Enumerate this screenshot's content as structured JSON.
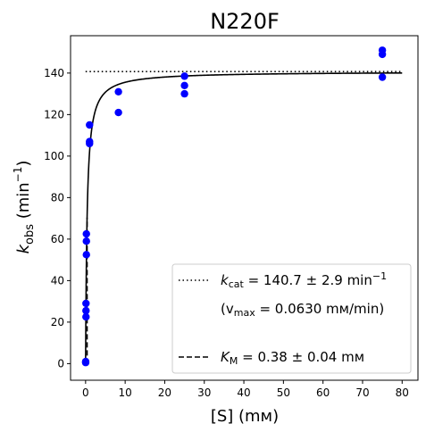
{
  "chart_data": {
    "type": "scatter",
    "title": "N220F",
    "xlabel": "[S] (mм)",
    "ylabel": "k_obs (min⁻¹)",
    "xlim": [
      -3.8,
      84
    ],
    "ylim": [
      -8,
      158
    ],
    "x_ticks": [
      0,
      10,
      20,
      30,
      40,
      50,
      60,
      70,
      80
    ],
    "y_ticks": [
      0,
      20,
      40,
      60,
      80,
      100,
      120,
      140
    ],
    "grid": false,
    "legend_position": "bottom-right",
    "colors": {
      "points": "#0000ff",
      "fit": "#000000"
    },
    "points": [
      {
        "x": 0.02,
        "y": 0.5
      },
      {
        "x": 0.02,
        "y": 1.0
      },
      {
        "x": 0.1,
        "y": 22.5
      },
      {
        "x": 0.1,
        "y": 25.5
      },
      {
        "x": 0.1,
        "y": 29.0
      },
      {
        "x": 0.2,
        "y": 52.5
      },
      {
        "x": 0.2,
        "y": 59.0
      },
      {
        "x": 0.2,
        "y": 62.5
      },
      {
        "x": 1.0,
        "y": 106.0
      },
      {
        "x": 1.0,
        "y": 107.0
      },
      {
        "x": 1.0,
        "y": 115.0
      },
      {
        "x": 8.3,
        "y": 121.0
      },
      {
        "x": 8.3,
        "y": 131.0
      },
      {
        "x": 25,
        "y": 130.0
      },
      {
        "x": 25,
        "y": 134.0
      },
      {
        "x": 25,
        "y": 138.5
      },
      {
        "x": 75,
        "y": 138.0
      },
      {
        "x": 75,
        "y": 149.0
      },
      {
        "x": 75,
        "y": 151.0
      }
    ],
    "fit": {
      "model": "michaelis-menten",
      "kcat": 140.7,
      "km": 0.38,
      "x_range": [
        0,
        80
      ]
    },
    "kcat_line": {
      "y": 140.7,
      "x_range": [
        0,
        80
      ]
    },
    "km_line": {
      "x": 0.38,
      "y_range": [
        0,
        70.35
      ]
    },
    "legend": {
      "kcat_label": "k",
      "kcat_sub": "cat",
      "kcat_value": " = 140.7 ± 2.9 min",
      "kcat_sup": "−1",
      "vmax_open": "(v",
      "vmax_sub": "max",
      "vmax_value": " = 0.0630 mм/min)",
      "km_label": "K",
      "km_sub": "M",
      "km_value": " = 0.38 ± 0.04 mм"
    }
  }
}
